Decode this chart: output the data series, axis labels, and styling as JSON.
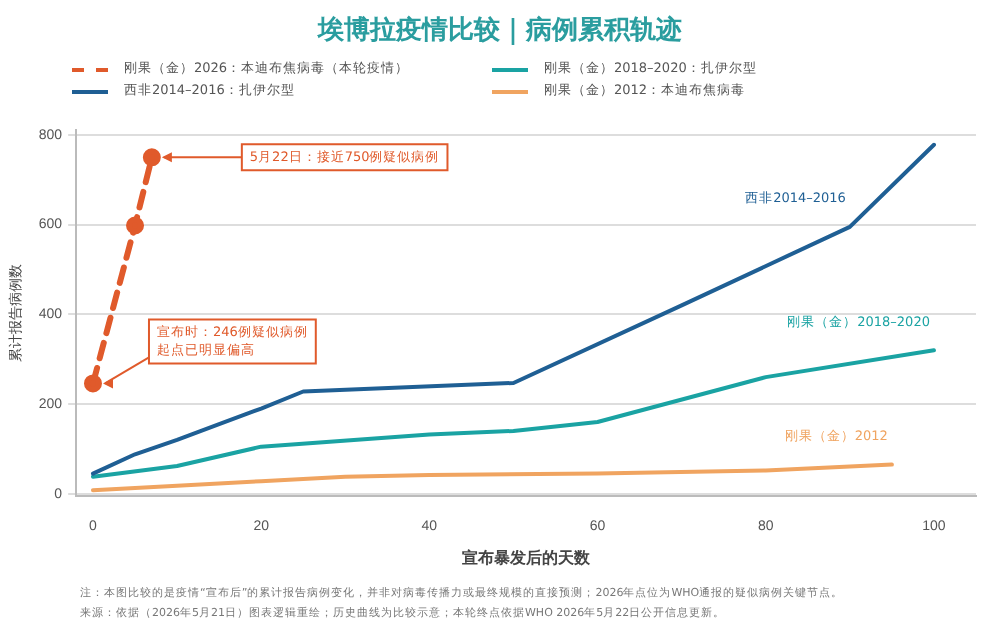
{
  "chart_data": {
    "type": "line",
    "title": "埃博拉疫情比较｜病例累积轨迹",
    "xlabel": "宣布暴发后的天数",
    "ylabel": "累计报告病例数",
    "series": [
      {
        "name": "刚果（金）2026：本迪布焦病毒（本轮疫情）",
        "color": "#e05a2b",
        "x": [
          0,
          5,
          7
        ],
        "values": [
          246,
          598,
          750
        ],
        "line_style": "dashed",
        "marker": "circle"
      },
      {
        "name": "西非2014–2016：扎伊尔型",
        "color": "#1f5f94",
        "x": [
          0,
          5,
          10,
          15,
          20,
          25,
          50,
          70,
          90,
          100
        ],
        "values": [
          45,
          88,
          120,
          155,
          190,
          228,
          247,
          420,
          595,
          778
        ]
      },
      {
        "name": "刚果（金）2018–2020：扎伊尔型",
        "color": "#1aa3a3",
        "x": [
          0,
          10,
          20,
          40,
          50,
          60,
          80,
          100
        ],
        "values": [
          38,
          62,
          105,
          132,
          140,
          160,
          260,
          320
        ]
      },
      {
        "name": "刚果（金）2012：本迪布焦病毒",
        "color": "#f0a460",
        "x": [
          0,
          10,
          20,
          30,
          40,
          60,
          80,
          95
        ],
        "values": [
          8,
          18,
          28,
          38,
          42,
          45,
          52,
          65
        ]
      }
    ],
    "xlim": [
      -2,
      105
    ],
    "xticks": [
      0,
      20,
      40,
      60,
      80,
      100
    ],
    "ylim": [
      -5,
      810
    ],
    "yticks": [
      0,
      200,
      400,
      600,
      800
    ],
    "grid": "y",
    "legend": "top",
    "annotations": [
      {
        "text": "5月22日：接近750例疑似病例",
        "x": 7,
        "y": 750
      },
      {
        "text": "宣布时：246例疑似病例起点已明显偏高",
        "x": 0,
        "y": 246
      },
      {
        "text": "西非2014–2016",
        "x": 90,
        "y": 595
      },
      {
        "text": "刚果（金）2018–2020",
        "x": 100,
        "y": 320
      },
      {
        "text": "刚果（金）2012",
        "x": 95,
        "y": 65
      },
      "注：本图比较的是疫情“宣布后”的累计报告病例变化，并非对病毒传播力或最终规模的直接预测；2026年点位为WHO通报的疑似病例关键节点。",
      "来源：依据（2026年5月21日）图表逻辑重绘；历史曲线为比较示意；本轮终点依据WHO 2026年5月22日公开信息更新。"
    ]
  }
}
